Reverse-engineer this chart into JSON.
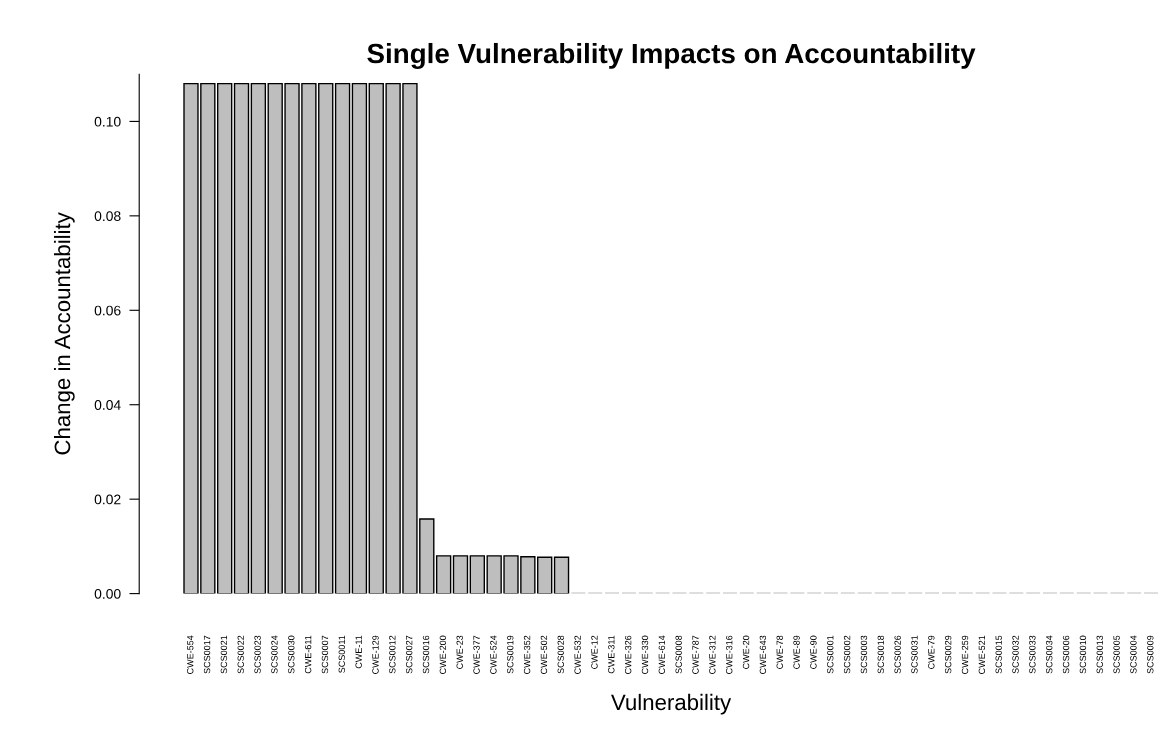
{
  "chart_data": {
    "type": "bar",
    "title": "Single Vulnerability Impacts on Accountability",
    "xlabel": "Vulnerability",
    "ylabel": "Change in Accountability",
    "categories": [
      "CWE-554",
      "SCS0017",
      "SCS0021",
      "SCS0022",
      "SCS0023",
      "SCS0024",
      "SCS0030",
      "CWE-611",
      "SCS0007",
      "SCS0011",
      "CWE-11",
      "CWE-129",
      "SCS0012",
      "SCS0027",
      "SCS0016",
      "CWE-200",
      "CWE-23",
      "CWE-377",
      "CWE-524",
      "SCS0019",
      "CWE-352",
      "CWE-502",
      "SCS0028",
      "CWE-532",
      "CWE-12",
      "CWE-311",
      "CWE-326",
      "CWE-330",
      "CWE-614",
      "SCS0008",
      "CWE-787",
      "CWE-312",
      "CWE-316",
      "CWE-20",
      "CWE-643",
      "CWE-78",
      "CWE-89",
      "CWE-90",
      "SCS0001",
      "SCS0002",
      "SCS0003",
      "SCS0018",
      "SCS0026",
      "SCS0031",
      "CWE-79",
      "SCS0029",
      "CWE-259",
      "CWE-521",
      "SCS0015",
      "SCS0032",
      "SCS0033",
      "SCS0034",
      "SCS0006",
      "SCS0010",
      "SCS0013",
      "SCS0005",
      "SCS0004",
      "SCS0009"
    ],
    "values": [
      0.108,
      0.108,
      0.108,
      0.108,
      0.108,
      0.108,
      0.108,
      0.108,
      0.108,
      0.108,
      0.108,
      0.108,
      0.108,
      0.108,
      0.0158,
      0.008,
      0.008,
      0.008,
      0.008,
      0.008,
      0.0078,
      0.0077,
      0.0077,
      0,
      0,
      0,
      0,
      0,
      0,
      0,
      0,
      0,
      0,
      0,
      0,
      0,
      0,
      0,
      0,
      0,
      0,
      0,
      0,
      0,
      0,
      0,
      0,
      0,
      0,
      0,
      0,
      0,
      0,
      0,
      0,
      0,
      0,
      0
    ],
    "color": "#bebebe",
    "ylim": [
      0,
      0.11
    ],
    "yticks": [
      {
        "value": 0,
        "label": "0.00"
      },
      {
        "value": 0.02,
        "label": "0.02"
      },
      {
        "value": 0.04,
        "label": "0.04"
      },
      {
        "value": 0.06,
        "label": "0.06"
      },
      {
        "value": 0.08,
        "label": "0.08"
      },
      {
        "value": 0.1,
        "label": "0.10"
      }
    ],
    "grid": false,
    "legend": false
  }
}
